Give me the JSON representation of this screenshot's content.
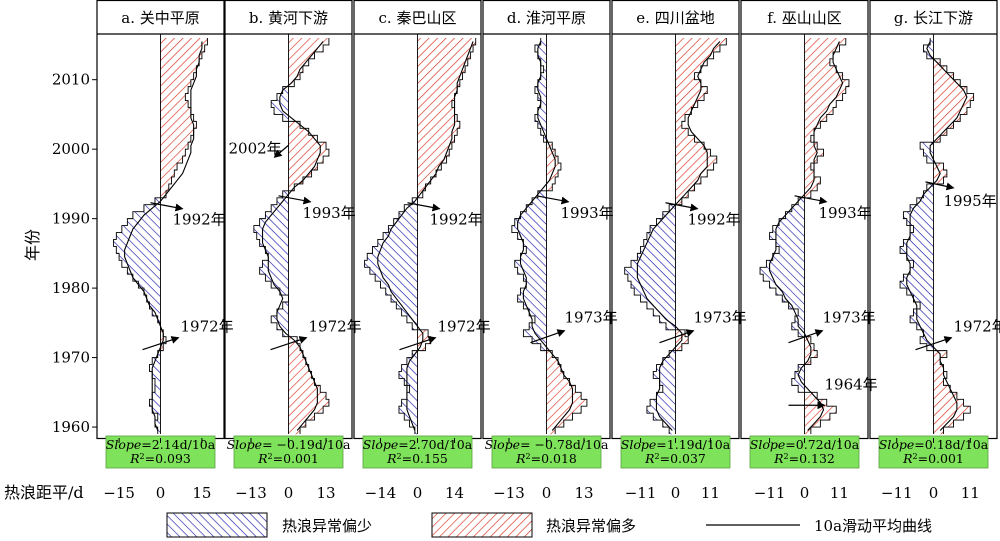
{
  "chart_data": {
    "type": "area",
    "ylabel": "年份",
    "xlabel": "热浪距平/d",
    "ylim": [
      1959,
      2016
    ],
    "year_ticks": [
      "1960",
      "1970",
      "1980",
      "1990",
      "2000",
      "2010"
    ],
    "panels": [
      {
        "title": "a. 关中平原",
        "xlim": [
          -23,
          23
        ],
        "xticks": [
          "−15",
          "0",
          "15"
        ],
        "tick_values": [
          -15,
          0,
          15
        ],
        "slope_label": "Slope",
        "slope_value": "=2.14d/10a",
        "r2_label": "R",
        "r2_value": "=0.093",
        "annotations": [
          {
            "text": "1972年",
            "year": 1972
          },
          {
            "text": "1992年",
            "year": 1992
          }
        ],
        "anomaly": [
          -1,
          -2,
          -1,
          -3,
          -4,
          -3,
          -2,
          -2,
          -3,
          -4,
          -3,
          -1,
          1,
          2,
          1,
          0,
          -1,
          -3,
          -4,
          -5,
          -6,
          -8,
          -10,
          -12,
          -14,
          -15,
          -16,
          -17,
          -16,
          -14,
          -12,
          -10,
          -6,
          -2,
          2,
          3,
          4,
          5,
          6,
          8,
          9,
          10,
          11,
          12,
          13,
          12,
          11,
          10,
          9,
          10,
          11,
          12,
          13,
          14,
          15,
          16,
          17
        ],
        "smooth": [
          -1,
          -2,
          -2,
          -3,
          -3,
          -3,
          -3,
          -3,
          -3,
          -3,
          -2,
          -1,
          0,
          1,
          1,
          0,
          -1,
          -2,
          -4,
          -5,
          -6,
          -8,
          -10,
          -11,
          -12,
          -13,
          -13,
          -12,
          -11,
          -10,
          -8,
          -6,
          -3,
          0,
          2,
          4,
          6,
          8,
          9,
          10,
          11,
          11,
          12,
          12,
          12,
          11,
          11,
          11,
          11,
          11,
          12,
          13,
          13,
          14,
          14,
          15,
          15
        ]
      },
      {
        "title": "b. 黄河下游",
        "xlim": [
          -22,
          22
        ],
        "xticks": [
          "−13",
          "0",
          "13"
        ],
        "tick_values": [
          -13,
          0,
          13
        ],
        "slope_label": "Slope",
        "slope_value": "= −0.19d/10a",
        "r2_label": "R",
        "r2_value": "=0.001",
        "annotations": [
          {
            "text": "1972年",
            "year": 1972
          },
          {
            "text": "1993年",
            "year": 1993
          },
          {
            "text": "2002年",
            "year": 2002
          }
        ],
        "anomaly": [
          4,
          6,
          9,
          12,
          14,
          13,
          11,
          9,
          8,
          7,
          6,
          5,
          4,
          3,
          -2,
          -4,
          -6,
          -4,
          -2,
          0,
          -3,
          -6,
          -8,
          -10,
          -9,
          -7,
          -8,
          -10,
          -11,
          -12,
          -10,
          -8,
          -6,
          -4,
          -2,
          2,
          5,
          8,
          10,
          12,
          14,
          13,
          10,
          7,
          4,
          -2,
          -5,
          -6,
          -4,
          -2,
          2,
          4,
          5,
          7,
          9,
          12,
          14
        ],
        "smooth": [
          3,
          5,
          7,
          9,
          10,
          10,
          10,
          9,
          8,
          7,
          6,
          5,
          4,
          2,
          -1,
          -3,
          -4,
          -4,
          -3,
          -2,
          -3,
          -5,
          -6,
          -7,
          -7,
          -7,
          -8,
          -9,
          -9,
          -9,
          -8,
          -6,
          -4,
          -2,
          0,
          2,
          5,
          7,
          9,
          10,
          11,
          11,
          9,
          7,
          4,
          1,
          -2,
          -3,
          -3,
          -2,
          1,
          3,
          4,
          6,
          8,
          10,
          12
        ]
      },
      {
        "title": "c. 秦巴山区",
        "xlim": [
          -24,
          24
        ],
        "xticks": [
          "−14",
          "0",
          "14"
        ],
        "tick_values": [
          -14,
          0,
          14
        ],
        "slope_label": "Slope",
        "slope_value": "=2.70d/10a",
        "r2_label": "R",
        "r2_value": "=0.155",
        "annotations": [
          {
            "text": "1972年",
            "year": 1972
          },
          {
            "text": "1992年",
            "year": 1992
          }
        ],
        "anomaly": [
          -1,
          -3,
          -5,
          -7,
          -6,
          -4,
          -3,
          -5,
          -7,
          -6,
          -4,
          -2,
          3,
          5,
          4,
          -2,
          -4,
          -6,
          -8,
          -10,
          -12,
          -14,
          -16,
          -18,
          -20,
          -19,
          -17,
          -15,
          -13,
          -11,
          -9,
          -7,
          -5,
          -2,
          2,
          3,
          5,
          7,
          9,
          11,
          12,
          13,
          14,
          15,
          16,
          15,
          14,
          13,
          14,
          15,
          16,
          17,
          18,
          19,
          20,
          21,
          22
        ],
        "smooth": [
          -1,
          -2,
          -3,
          -4,
          -4,
          -4,
          -4,
          -4,
          -4,
          -4,
          -3,
          -1,
          1,
          2,
          2,
          0,
          -2,
          -4,
          -6,
          -8,
          -10,
          -11,
          -13,
          -14,
          -15,
          -15,
          -14,
          -13,
          -11,
          -10,
          -8,
          -6,
          -4,
          -1,
          1,
          3,
          5,
          7,
          8,
          10,
          11,
          12,
          13,
          13,
          14,
          14,
          14,
          14,
          14,
          15,
          15,
          16,
          17,
          18,
          19,
          20,
          21
        ]
      },
      {
        "title": "d. 淮河平原",
        "xlim": [
          -22,
          22
        ],
        "xticks": [
          "−13",
          "0",
          "13"
        ],
        "tick_values": [
          -13,
          0,
          13
        ],
        "slope_label": "Slope",
        "slope_value": "= −0.78d/10a",
        "r2_label": "R",
        "r2_value": "=0.018",
        "annotations": [
          {
            "text": "1973年",
            "year": 1973
          },
          {
            "text": "1993年",
            "year": 1993
          }
        ],
        "anomaly": [
          3,
          6,
          9,
          12,
          14,
          12,
          10,
          8,
          6,
          5,
          4,
          2,
          -2,
          -5,
          -8,
          -6,
          -4,
          -6,
          -8,
          -10,
          -9,
          -7,
          -8,
          -10,
          -11,
          -9,
          -7,
          -8,
          -10,
          -12,
          -11,
          -9,
          -7,
          -5,
          -3,
          2,
          3,
          4,
          5,
          4,
          3,
          2,
          -1,
          -2,
          -3,
          -4,
          -3,
          -2,
          -3,
          -4,
          -3,
          -2,
          -1,
          -2,
          -3,
          -4,
          -2
        ],
        "smooth": [
          2,
          4,
          6,
          8,
          9,
          9,
          9,
          8,
          6,
          5,
          4,
          2,
          0,
          -2,
          -4,
          -5,
          -5,
          -6,
          -7,
          -8,
          -8,
          -7,
          -7,
          -8,
          -9,
          -9,
          -8,
          -8,
          -9,
          -10,
          -10,
          -9,
          -7,
          -5,
          -3,
          -1,
          1,
          2,
          3,
          3,
          2,
          1,
          0,
          -1,
          -2,
          -3,
          -3,
          -2,
          -2,
          -3,
          -3,
          -2,
          -2,
          -2,
          -3,
          -3,
          -2
        ]
      },
      {
        "title": "e. 四川盆地",
        "xlim": [
          -20,
          20
        ],
        "xticks": [
          "−11",
          "0",
          "11"
        ],
        "tick_values": [
          -11,
          0,
          11
        ],
        "slope_label": "Slope",
        "slope_value": "=1.19d/10a",
        "r2_label": "R",
        "r2_value": "=0.037",
        "annotations": [
          {
            "text": "1973年",
            "year": 1973
          },
          {
            "text": "1992年",
            "year": 1992
          }
        ],
        "anomaly": [
          -2,
          -4,
          -7,
          -9,
          -8,
          -6,
          -4,
          -5,
          -7,
          -6,
          -4,
          -2,
          2,
          4,
          3,
          -3,
          -5,
          -7,
          -9,
          -11,
          -13,
          -14,
          -15,
          -16,
          -14,
          -12,
          -11,
          -10,
          -9,
          -8,
          -6,
          -4,
          -2,
          2,
          4,
          6,
          8,
          10,
          12,
          13,
          11,
          9,
          6,
          4,
          2,
          3,
          5,
          7,
          9,
          10,
          8,
          6,
          8,
          10,
          12,
          14,
          16
        ],
        "smooth": [
          -1,
          -3,
          -5,
          -6,
          -6,
          -6,
          -5,
          -5,
          -5,
          -5,
          -4,
          -2,
          0,
          2,
          2,
          0,
          -3,
          -5,
          -7,
          -9,
          -10,
          -11,
          -12,
          -12,
          -12,
          -11,
          -10,
          -9,
          -8,
          -7,
          -5,
          -3,
          -1,
          1,
          3,
          5,
          7,
          8,
          10,
          10,
          10,
          9,
          7,
          5,
          4,
          4,
          5,
          6,
          7,
          8,
          8,
          7,
          8,
          9,
          11,
          12,
          14
        ]
      },
      {
        "title": "f. 巫山山区",
        "xlim": [
          -20,
          20
        ],
        "xticks": [
          "−11",
          "0",
          "11"
        ],
        "tick_values": [
          -11,
          0,
          11
        ],
        "slope_label": "Slope",
        "slope_value": "=0.72d/10a",
        "r2_label": "R",
        "r2_value": "=0.132",
        "annotations": [
          {
            "text": "1964年",
            "year": 1964
          },
          {
            "text": "1973年",
            "year": 1973
          },
          {
            "text": "1993年",
            "year": 1993
          }
        ],
        "anomaly": [
          2,
          5,
          8,
          10,
          7,
          4,
          -2,
          -4,
          -3,
          -2,
          2,
          4,
          3,
          2,
          -2,
          -4,
          -3,
          -2,
          -5,
          -7,
          -9,
          -11,
          -13,
          -14,
          -12,
          -10,
          -8,
          -9,
          -11,
          -10,
          -8,
          -6,
          -4,
          -2,
          2,
          4,
          5,
          3,
          2,
          4,
          6,
          4,
          2,
          3,
          5,
          7,
          9,
          10,
          12,
          13,
          14,
          12,
          10,
          8,
          9,
          11,
          13
        ],
        "smooth": [
          1,
          3,
          5,
          6,
          5,
          3,
          1,
          -1,
          -2,
          -1,
          1,
          2,
          2,
          1,
          0,
          -2,
          -2,
          -3,
          -4,
          -6,
          -7,
          -9,
          -10,
          -11,
          -11,
          -10,
          -9,
          -9,
          -9,
          -9,
          -8,
          -6,
          -4,
          -2,
          0,
          2,
          3,
          3,
          3,
          3,
          4,
          3,
          3,
          3,
          4,
          5,
          7,
          8,
          10,
          11,
          12,
          11,
          10,
          9,
          9,
          10,
          11
        ]
      },
      {
        "title": "g. 长江下游",
        "xlim": [
          -19,
          19
        ],
        "xticks": [
          "−11",
          "0",
          "11"
        ],
        "tick_values": [
          -11,
          0,
          11
        ],
        "slope_label": "Slope",
        "slope_value": "=0.18d/10a",
        "r2_label": "R",
        "r2_value": "=0.001",
        "annotations": [
          {
            "text": "1972年",
            "year": 1972
          },
          {
            "text": "1995年",
            "year": 1995
          }
        ],
        "anomaly": [
          3,
          6,
          9,
          11,
          9,
          7,
          5,
          3,
          4,
          3,
          2,
          4,
          -2,
          -4,
          -3,
          -5,
          -7,
          -6,
          -4,
          -6,
          -8,
          -10,
          -9,
          -7,
          -6,
          -8,
          -10,
          -9,
          -7,
          -6,
          -8,
          -9,
          -7,
          -5,
          -3,
          -2,
          3,
          4,
          3,
          -2,
          -3,
          -4,
          2,
          4,
          6,
          8,
          10,
          11,
          12,
          10,
          8,
          6,
          4,
          2,
          -2,
          -3,
          -1
        ],
        "smooth": [
          2,
          4,
          6,
          7,
          7,
          6,
          5,
          4,
          3,
          3,
          2,
          2,
          0,
          -2,
          -3,
          -4,
          -5,
          -5,
          -5,
          -6,
          -7,
          -8,
          -8,
          -7,
          -7,
          -8,
          -8,
          -8,
          -7,
          -7,
          -7,
          -7,
          -6,
          -4,
          -3,
          -1,
          1,
          2,
          1,
          0,
          -1,
          -1,
          1,
          3,
          5,
          7,
          8,
          9,
          10,
          9,
          7,
          5,
          3,
          1,
          -1,
          -2,
          -1
        ]
      }
    ],
    "legend": [
      {
        "label": "热浪异常偏少",
        "color": "#1a1aa8",
        "pattern": "hatch"
      },
      {
        "label": "热浪异常偏多",
        "color": "#d8321e",
        "pattern": "hatch"
      },
      {
        "label": "10a滑动平均曲线",
        "color": "#000000",
        "pattern": "line"
      }
    ],
    "colors": {
      "negative_hatch": "#1a1aa8",
      "positive_hatch": "#d8321e",
      "stat_box": "#7ee35a"
    }
  }
}
